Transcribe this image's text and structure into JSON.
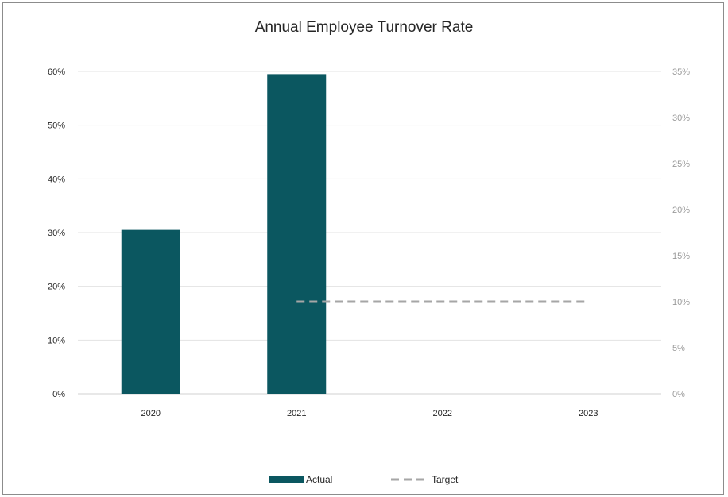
{
  "chart_data": {
    "type": "bar",
    "title": "Annual Employee Turnover Rate",
    "categories": [
      "2020",
      "2021",
      "2022",
      "2023"
    ],
    "series": [
      {
        "name": "Actual",
        "type": "bar",
        "axis": "left",
        "values": [
          30.5,
          59.5,
          null,
          null
        ],
        "color": "#0b5760"
      },
      {
        "name": "Target",
        "type": "line",
        "style": "dashed",
        "axis": "right",
        "values": [
          null,
          10,
          10,
          10
        ],
        "color": "#a6a6a6"
      }
    ],
    "y_left": {
      "ylim": [
        0,
        60
      ],
      "ticks": [
        0,
        10,
        20,
        30,
        40,
        50,
        60
      ],
      "tick_labels": [
        "0%",
        "10%",
        "20%",
        "30%",
        "40%",
        "50%",
        "60%"
      ]
    },
    "y_right": {
      "ylim": [
        0,
        35
      ],
      "ticks": [
        0,
        5,
        10,
        15,
        20,
        25,
        30,
        35
      ],
      "tick_labels": [
        "0%",
        "5%",
        "10%",
        "15%",
        "20%",
        "25%",
        "30%",
        "35%"
      ]
    },
    "grid": true,
    "legend": {
      "position": "bottom",
      "entries": [
        "Actual",
        "Target"
      ]
    }
  }
}
